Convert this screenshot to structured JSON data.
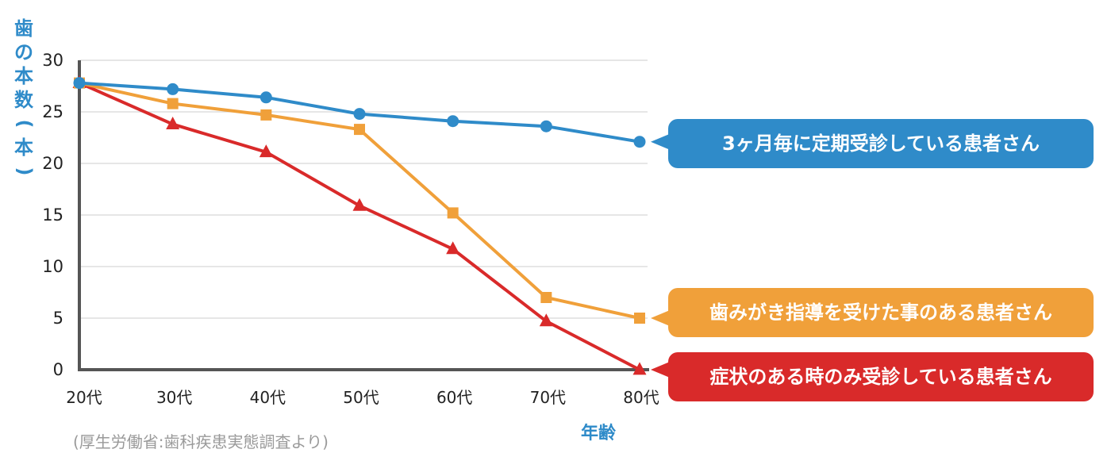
{
  "chart_data": {
    "type": "line",
    "ylabel": "歯の本数(本)",
    "xlabel": "年齢",
    "categories": [
      "20代",
      "30代",
      "40代",
      "50代",
      "60代",
      "70代",
      "80代"
    ],
    "ylim": [
      0,
      30
    ],
    "yticks": [
      0,
      5,
      10,
      15,
      20,
      25,
      30
    ],
    "grid": true,
    "series": [
      {
        "name": "3ヶ月毎に定期受診している患者さん",
        "color": "#2f8bc9",
        "marker": "circle",
        "values": [
          27.8,
          27.2,
          26.4,
          24.8,
          24.1,
          23.6,
          22.1
        ]
      },
      {
        "name": "歯みがき指導を受けた事のある患者さん",
        "color": "#f0a03a",
        "marker": "square",
        "values": [
          27.8,
          25.8,
          24.7,
          23.3,
          15.2,
          7.0,
          5.0
        ]
      },
      {
        "name": "症状のある時のみ受診している患者さん",
        "color": "#d92a2a",
        "marker": "triangle",
        "values": [
          27.8,
          23.8,
          21.1,
          15.9,
          11.7,
          4.7,
          0.0
        ]
      }
    ],
    "source": "(厚生労働省:歯科疾患実態調査より)",
    "axis_color": "#2f8bc9"
  }
}
